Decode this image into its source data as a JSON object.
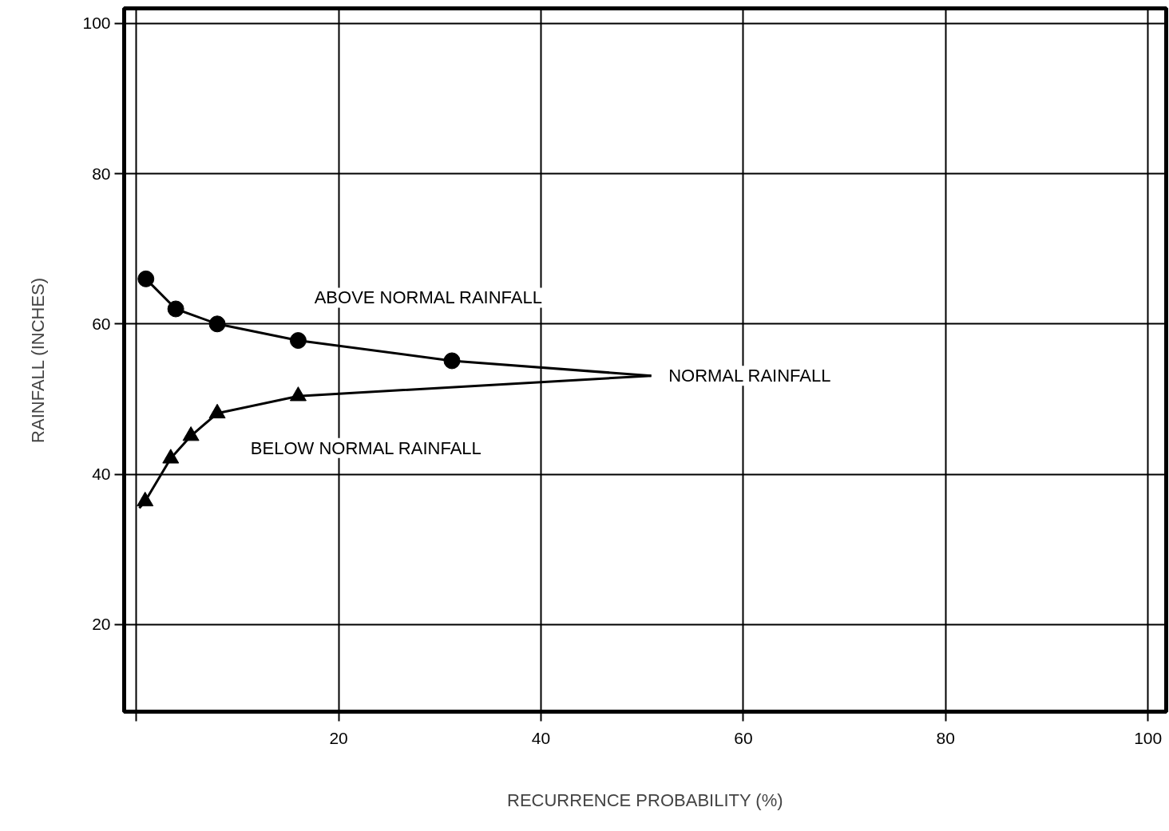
{
  "chart_data": {
    "type": "line",
    "xlabel": "RECURRENCE PROBABILITY (%)",
    "ylabel": "RAINFALL (INCHES)",
    "xlim": [
      -1.2,
      101.8
    ],
    "ylim": [
      8.4,
      102
    ],
    "xticks": [
      {
        "value": 0,
        "label": null
      },
      20,
      40,
      60,
      80,
      100
    ],
    "yticks": [
      20,
      40,
      60,
      80,
      100
    ],
    "grid": true,
    "series": [
      {
        "color": "#000000",
        "marker": "none",
        "x": [
          0.95,
          3.9,
          8.0,
          16.0,
          31.2,
          50.9
        ],
        "values": [
          66.0,
          62.0,
          60.0,
          57.8,
          55.1,
          53.1
        ]
      },
      {
        "type": "scatter",
        "color": "#000000",
        "marker": "circle",
        "x": [
          0.95,
          3.9,
          8.0,
          16.0,
          31.2
        ],
        "values": [
          66.0,
          62.0,
          60.0,
          57.8,
          55.1
        ]
      },
      {
        "color": "#000000",
        "marker": "none",
        "x": [
          0.3,
          0.87,
          3.4,
          5.4,
          8.0,
          16.0,
          50.9
        ],
        "values": [
          35.5,
          36.4,
          42.1,
          45.1,
          48.1,
          50.4,
          53.1
        ]
      },
      {
        "type": "scatter",
        "color": "#000000",
        "marker": "triangle",
        "x": [
          0.87,
          3.4,
          5.4,
          8.0,
          16.0
        ],
        "values": [
          36.4,
          42.1,
          45.1,
          48.1,
          50.4
        ]
      }
    ],
    "annotations": [
      "ABOVE NORMAL RAINFALL",
      "NORMAL RAINFALL",
      "BELOW NORMAL RAINFALL"
    ]
  }
}
